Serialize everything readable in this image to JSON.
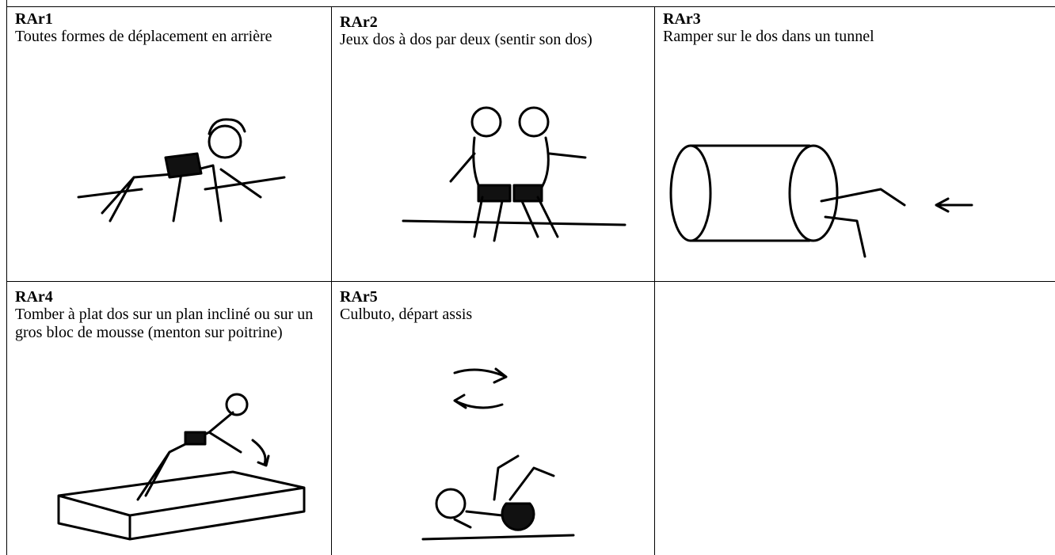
{
  "cells": [
    {
      "code": "RAr1",
      "text": "Toutes formes de déplacement en arrière"
    },
    {
      "code": "RAr2",
      "text": "Jeux dos à dos par deux (sentir son dos)"
    },
    {
      "code": "RAr3",
      "text": "Ramper sur le dos dans un tunnel"
    },
    {
      "code": "RAr4",
      "text": "Tomber à plat dos sur un plan incliné ou sur un gros bloc de mousse (menton sur poitrine)"
    },
    {
      "code": "RAr5",
      "text": "Culbuto, départ assis"
    }
  ]
}
